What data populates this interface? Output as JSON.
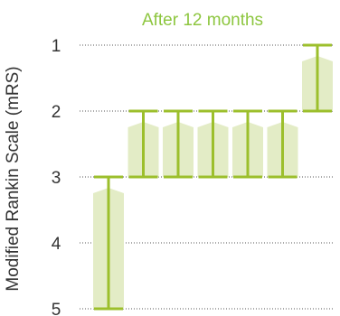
{
  "chart_data": {
    "type": "bar",
    "title": "After 12 months",
    "ylabel": "Modified Rankin Scale (mRS)",
    "xlabel": "",
    "y_axis_inverted": true,
    "ylim": [
      1,
      5
    ],
    "yticks": [
      "1",
      "2",
      "3",
      "4",
      "5"
    ],
    "grid": "horizontal dotted",
    "legend": "none",
    "series": [
      {
        "values": [
          {
            "from": 5,
            "to": 3
          },
          {
            "from": 3,
            "to": 2
          },
          {
            "from": 3,
            "to": 2
          },
          {
            "from": 3,
            "to": 2
          },
          {
            "from": 3,
            "to": 2
          },
          {
            "from": 3,
            "to": 2
          },
          {
            "from": 2,
            "to": 1
          }
        ]
      }
    ],
    "colors": {
      "title": "#8dc63f",
      "bar_fill": "#e3ecc6",
      "bar_stroke": "#9cbf2c",
      "text": "#333333",
      "grid": "#555555"
    }
  }
}
